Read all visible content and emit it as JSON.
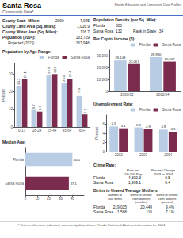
{
  "title": "Santa Rosa",
  "subtitle": "Community Data*",
  "color": "#4472c4",
  "annotations": [
    [
      [
        "Florida Education and Community Data Profiles"
      ]
    ],
    [
      [
        "County Seat:  Milton",
        "2000",
        "7,045"
      ],
      [
        "County Land Area (Sq. Miles):",
        "1,016.9"
      ],
      [
        "County Water Area (Sq. Miles):",
        "116.7"
      ],
      [
        "Population (2004):",
        "133,729"
      ],
      [
        "Projected (2015)",
        "167,946"
      ]
    ],
    [
      [
        "Population Density (per Sq. Mile):"
      ],
      [
        "Florida",
        "303"
      ],
      [
        "Santa Rosa",
        "132",
        "Rank in State:  34"
      ]
    ],
    [
      [
        "Crime Rate:"
      ],
      [
        "Rate per",
        "Percent Change"
      ],
      [
        "100,000 Pop.",
        "2003 to 2004"
      ],
      [
        "Florida",
        "4,302.3",
        "-0.5"
      ],
      [
        "Santa Rosa",
        "1,969.1",
        "0.4"
      ]
    ],
    [
      [
        "Births to Unwed Teenage Mothers:"
      ],
      [
        "Number of\nLive Births",
        "Births to Unwed\nTeen Mothers\n(number)",
        "Births to Unwed\nTeen Mothers\n(percent)"
      ],
      [
        "Florida",
        "219,025",
        "20,449",
        "9.4%"
      ],
      [
        "Santa Rosa",
        "1,568",
        "110",
        "7.1%"
      ]
    ],
    [
      [
        "* Unless otherwise indicated, community data shown Florida Statistical Abstract information for 2004"
      ]
    ]
  ],
  "chart_data": [
    {
      "type": "bar",
      "title": "Population by Age Range:",
      "categories": [
        "0-17",
        "18-24",
        "25-44",
        "45-64",
        "65+"
      ],
      "series": [
        {
          "name": "Florida",
          "color": "#b8cce4",
          "values": [
            23.3,
            9.7,
            29.5,
            25.0,
            17.6
          ],
          "value_labels": [
            "23.3",
            "9.7",
            "29.5",
            "25.0",
            "17.6"
          ]
        },
        {
          "name": "Santa Rosa",
          "color": "#7b2c4e",
          "values": [
            27.1,
            8.7,
            30.0,
            27.4,
            7.1
          ],
          "value_labels": [
            "27.1",
            "8.7",
            "30.0",
            "27.4",
            "7.1"
          ]
        }
      ],
      "ylabel": "Percent",
      "ylim": [
        0,
        36
      ],
      "yticks": [
        0,
        10,
        20,
        30
      ],
      "grid": false,
      "legend": "upper right",
      "data_labels": true
    },
    {
      "type": "bar",
      "title": "Median Age:",
      "orientation": "horizontal",
      "categories": [
        "Santa Rosa",
        "Florida"
      ],
      "values": [
        37.1,
        40.1
      ],
      "colors": [
        "#7b2c4e",
        "#b8cce4"
      ],
      "xlim": [
        0,
        50
      ],
      "xticks": [
        0,
        10,
        20,
        30,
        40
      ],
      "grid": false,
      "data_labels": true
    },
    {
      "type": "bar",
      "title": "Per Capita Income ($):",
      "categories": [
        "2000/02",
        "2002/04"
      ],
      "series": [
        {
          "name": "Florida",
          "color": "#b8cce4",
          "values": [
            26143,
            28980
          ],
          "value_labels": [
            "26,143",
            "28,980"
          ]
        },
        {
          "name": "Santa Rosa",
          "color": "#7b2c4e",
          "values": [
            23067,
            25207
          ],
          "value_labels": [
            "23,067",
            "25,207"
          ]
        }
      ],
      "ylim": [
        0,
        35000
      ],
      "yticks": [
        0,
        {
          "value": 10000,
          "label": "10,000"
        },
        {
          "value": 20000,
          "label": "20,000"
        },
        {
          "value": 30000,
          "label": "30,000"
        }
      ],
      "grid": false,
      "legend": "upper right",
      "data_labels": true
    },
    {
      "type": "bar",
      "title": "Unemployment Rate:",
      "categories": [
        "2002",
        "2003",
        "2004"
      ],
      "series": [
        {
          "name": "Florida",
          "color": "#b8cce4",
          "values": [
            5.5,
            5.3,
            4.8
          ]
        },
        {
          "name": "Santa Rosa",
          "color": "#7b2c4e",
          "values": [
            5.1,
            4.9,
            4.3
          ]
        }
      ],
      "ylabel": "Percent",
      "ylim": [
        0,
        8
      ],
      "yticks": [
        0,
        2,
        4,
        6
      ],
      "grid": false,
      "legend": "upper right",
      "data_labels": true
    }
  ]
}
